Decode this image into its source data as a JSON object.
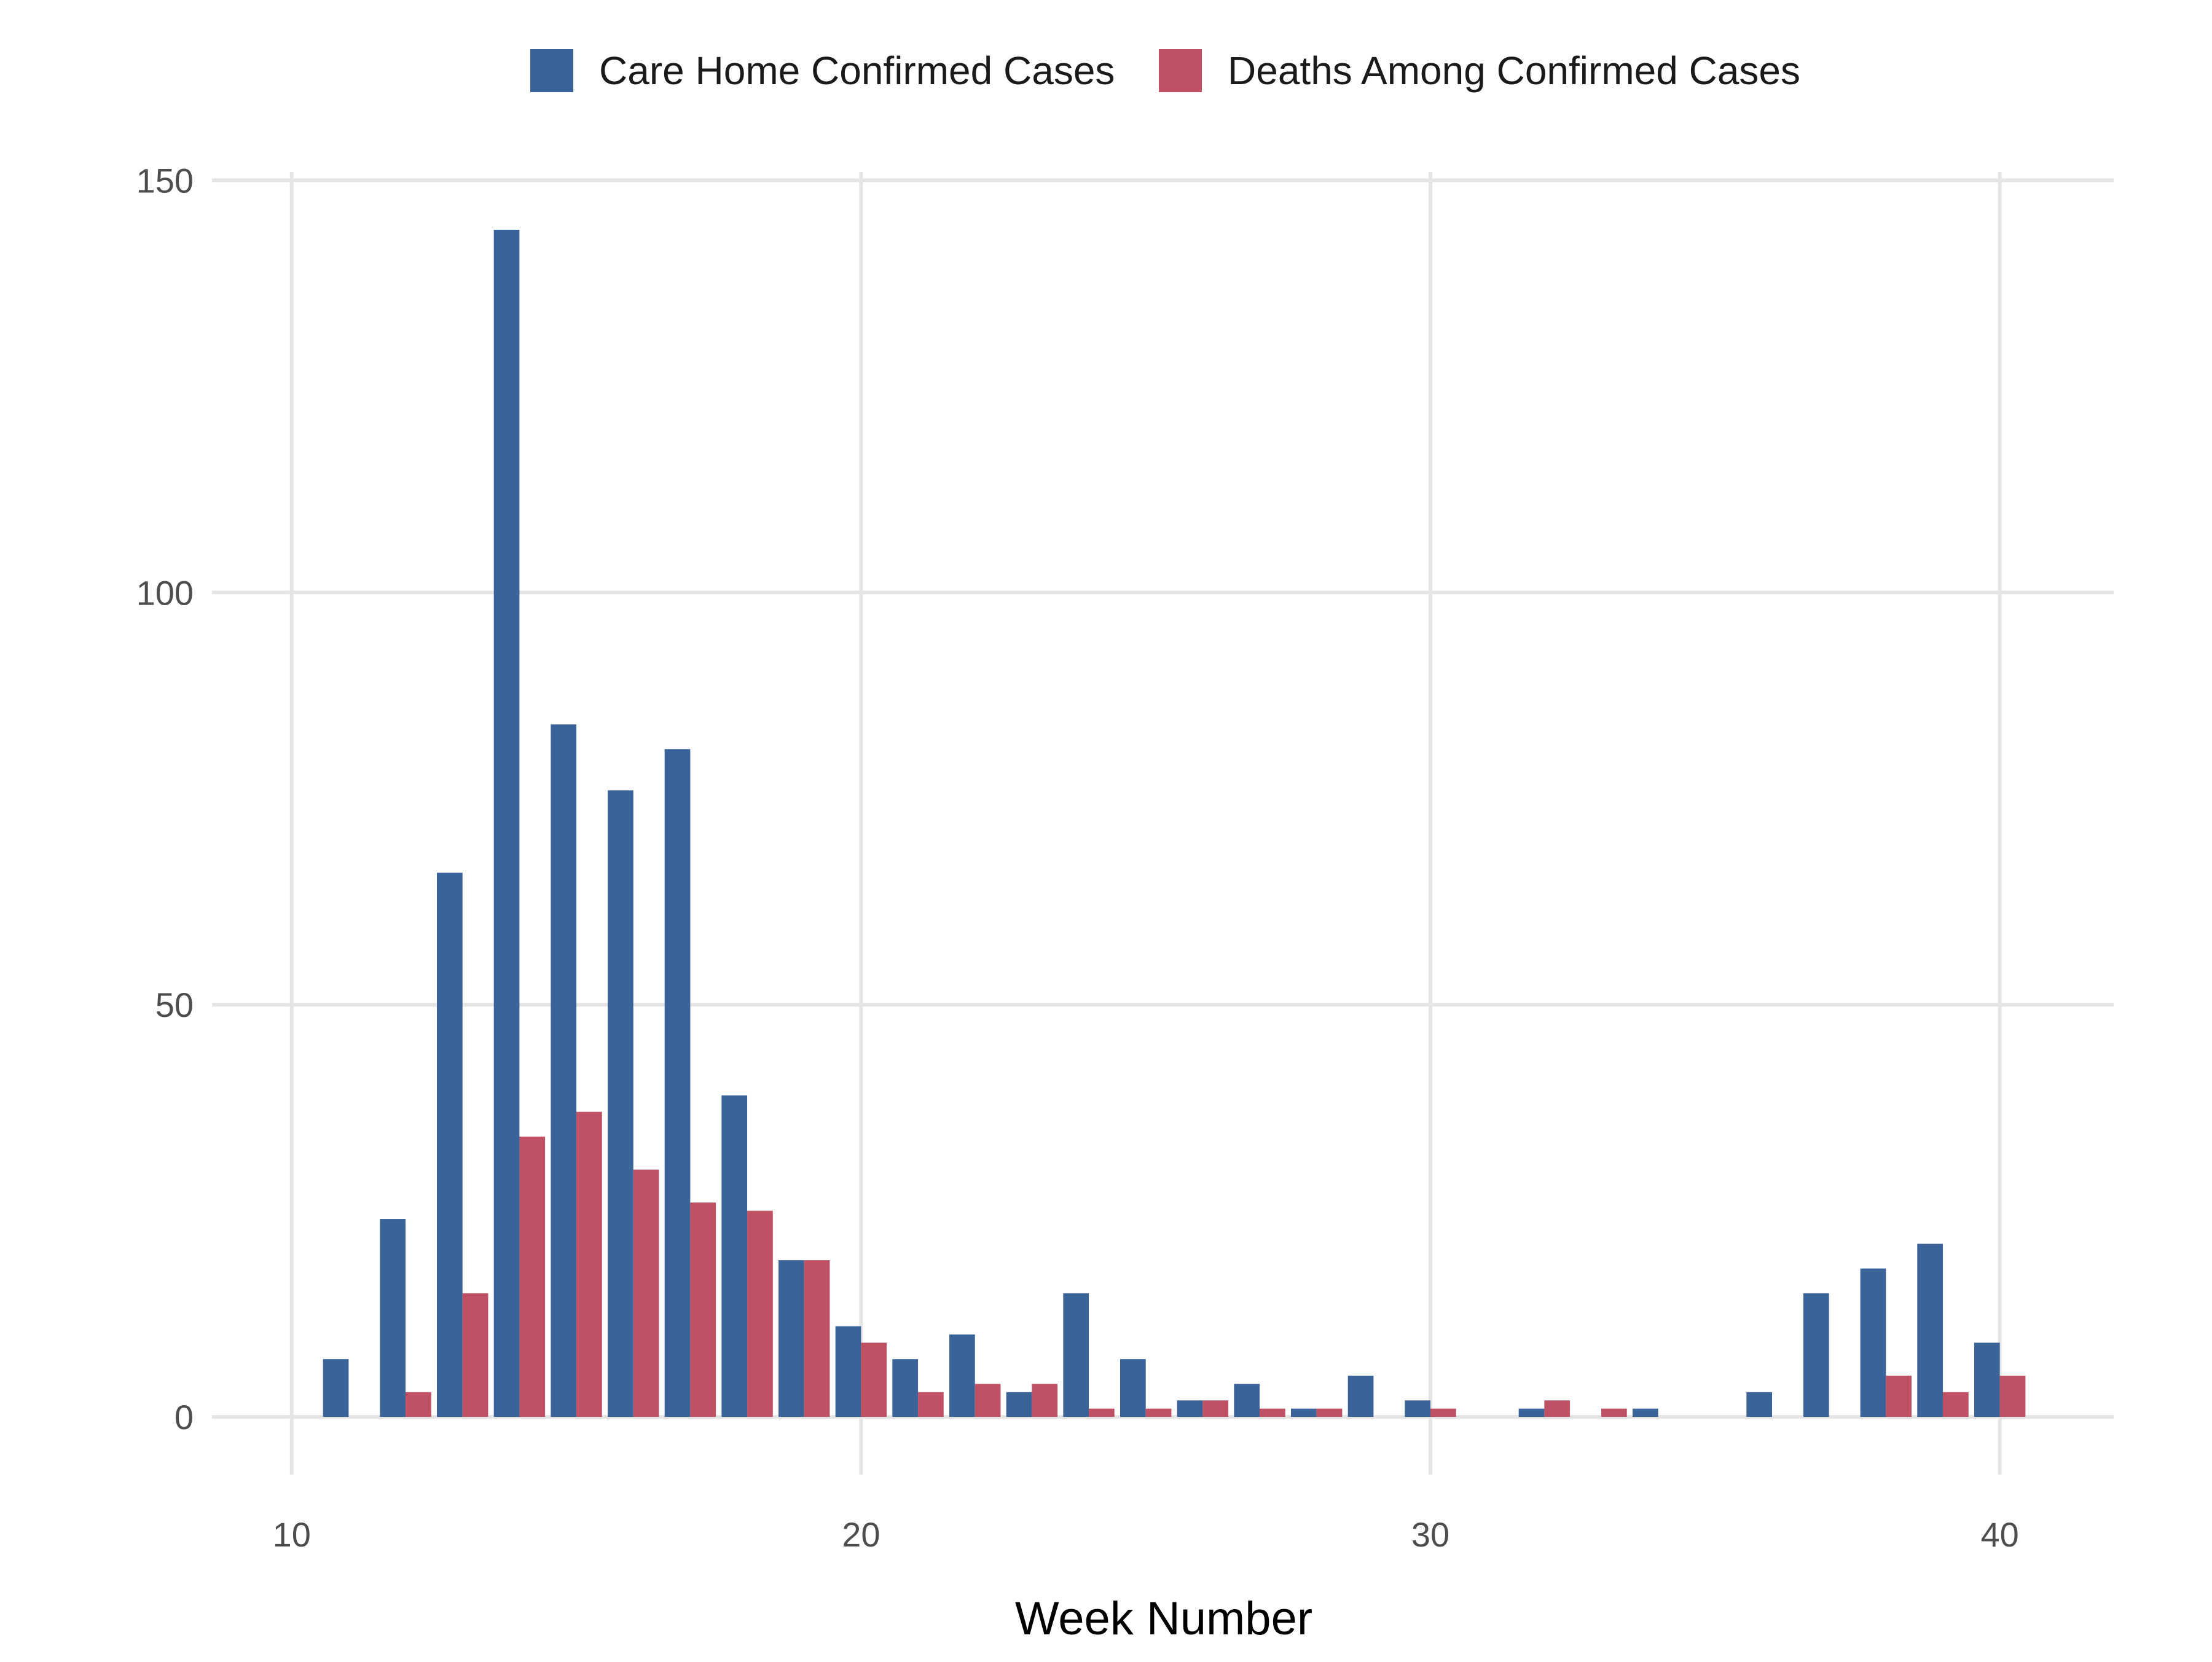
{
  "chart_data": {
    "type": "bar",
    "title": "",
    "xlabel": "Week Number",
    "ylabel": "",
    "xlim": [
      8.6,
      42
    ],
    "ylim": [
      -7,
      151
    ],
    "x_ticks": [
      10,
      20,
      30,
      40
    ],
    "y_ticks": [
      0,
      50,
      100,
      150
    ],
    "grid": true,
    "legend_position": "top",
    "series": [
      {
        "name": "Care Home Confirmed Cases",
        "color": "#3a6399",
        "x": [
          11,
          12,
          13,
          14,
          15,
          16,
          17,
          18,
          19,
          20,
          21,
          22,
          23,
          24,
          25,
          26,
          27,
          28,
          29,
          30,
          32,
          34,
          36,
          37,
          38,
          39,
          40
        ],
        "values": [
          7,
          24,
          66,
          144,
          84,
          76,
          81,
          39,
          19,
          11,
          7,
          10,
          3,
          15,
          7,
          2,
          4,
          1,
          5,
          2,
          1,
          1,
          3,
          15,
          18,
          21,
          9
        ]
      },
      {
        "name": "Deaths Among Confirmed Cases",
        "color": "#c05164",
        "x": [
          12,
          13,
          14,
          15,
          16,
          17,
          18,
          19,
          20,
          21,
          22,
          23,
          24,
          25,
          26,
          27,
          28,
          30,
          32,
          33,
          38,
          39,
          40
        ],
        "values": [
          3,
          15,
          34,
          37,
          30,
          26,
          25,
          19,
          9,
          3,
          4,
          4,
          1,
          1,
          2,
          1,
          1,
          1,
          2,
          1,
          5,
          3,
          5
        ]
      }
    ]
  }
}
